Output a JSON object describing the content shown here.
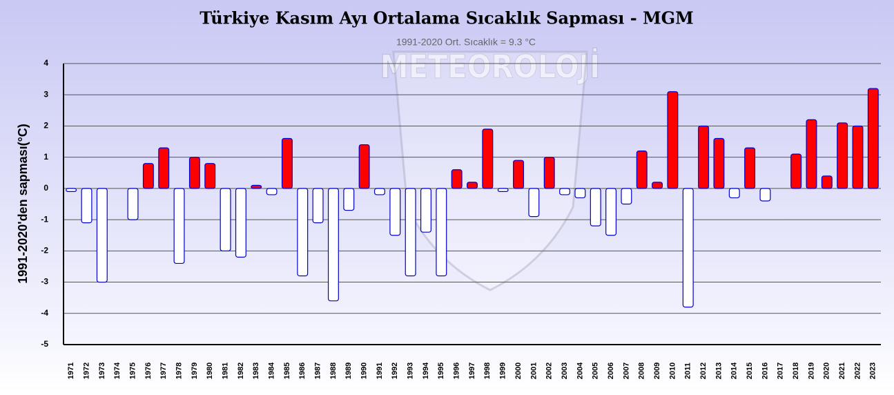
{
  "chart_data": {
    "type": "bar",
    "title": "Türkiye Kasım Ayı Ortalama Sıcaklık Sapması - MGM",
    "subtitle": "1991-2020 Ort. Sıcaklık = 9.3 °C",
    "watermark": "METEOROLOJİ",
    "y_label": "1991-2020'den sapması(°C)",
    "categories": [
      "1971",
      "1972",
      "1973",
      "1974",
      "1975",
      "1976",
      "1977",
      "1978",
      "1979",
      "1980",
      "1981",
      "1982",
      "1983",
      "1984",
      "1985",
      "1986",
      "1987",
      "1988",
      "1989",
      "1990",
      "1991",
      "1992",
      "1993",
      "1994",
      "1995",
      "1996",
      "1997",
      "1998",
      "1999",
      "2000",
      "2001",
      "2002",
      "2003",
      "2004",
      "2005",
      "2006",
      "2007",
      "2008",
      "2009",
      "2010",
      "2011",
      "2012",
      "2013",
      "2014",
      "2015",
      "2016",
      "2017",
      "2018",
      "2019",
      "2020",
      "2021",
      "2022",
      "2023"
    ],
    "values": [
      -0.1,
      -1.1,
      -3.0,
      0,
      -1.0,
      0.8,
      1.3,
      -2.4,
      1.0,
      0.8,
      -2.0,
      -2.2,
      0.1,
      -0.2,
      1.6,
      -2.8,
      -1.1,
      -3.6,
      -0.7,
      1.4,
      -0.2,
      -1.5,
      -2.8,
      -1.4,
      -2.8,
      0.6,
      0.2,
      1.9,
      -0.1,
      0.9,
      -0.9,
      1.0,
      -0.2,
      -0.3,
      -1.2,
      -1.5,
      -0.5,
      1.2,
      0.2,
      3.1,
      -3.8,
      2.0,
      1.6,
      -0.3,
      1.3,
      -0.4,
      0,
      1.1,
      2.2,
      0.4,
      2.1,
      2.0,
      3.2
    ],
    "positive_color": "#ff0000",
    "negative_color": "#ffffff",
    "border_color": "#0000cc",
    "ylim": [
      -5,
      4
    ],
    "yticks": [
      -5,
      -4,
      -3,
      -2,
      -1,
      0,
      1,
      2,
      3,
      4
    ],
    "grid": true
  }
}
